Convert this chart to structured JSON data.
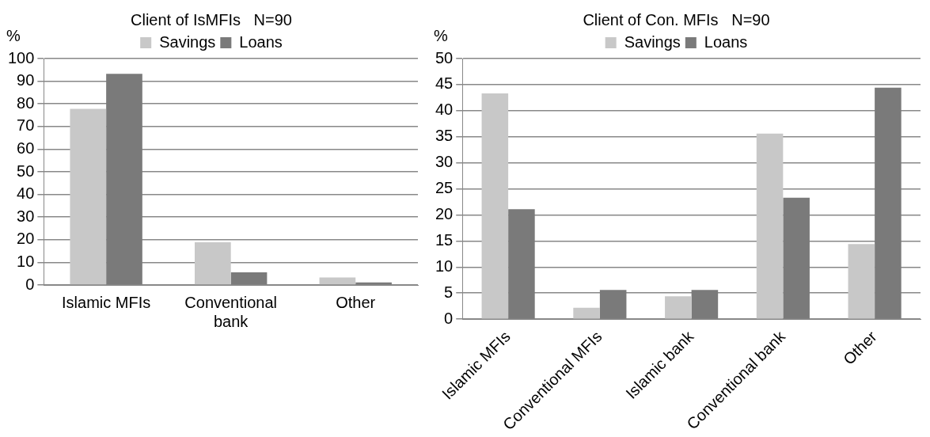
{
  "chart_data": [
    {
      "type": "bar",
      "title": "Client of IsMFIs   N=90",
      "ylabel": "%",
      "categories": [
        "Islamic MFIs",
        "Conventional bank",
        "Other"
      ],
      "series": [
        {
          "name": "Savings",
          "color": "#c8c8c8",
          "values": [
            77.8,
            18.9,
            3.3
          ]
        },
        {
          "name": "Loans",
          "color": "#7a7a7a",
          "values": [
            93.3,
            5.6,
            1.1
          ]
        }
      ],
      "ylim": [
        0,
        100
      ],
      "yticks": [
        0,
        10,
        20,
        30,
        40,
        50,
        60,
        70,
        80,
        90,
        100
      ],
      "grid": "y",
      "legend": "top"
    },
    {
      "type": "bar",
      "title": "Client of Con. MFIs   N=90",
      "ylabel": "%",
      "categories": [
        "Islamic MFIs",
        "Conventional MFIs",
        "Islamic bank",
        "Conventional bank",
        "Other"
      ],
      "series": [
        {
          "name": "Savings",
          "color": "#c8c8c8",
          "values": [
            43.3,
            2.2,
            4.4,
            35.6,
            14.4
          ]
        },
        {
          "name": "Loans",
          "color": "#7a7a7a",
          "values": [
            21.1,
            5.6,
            5.6,
            23.3,
            44.4
          ]
        }
      ],
      "ylim": [
        0,
        50
      ],
      "yticks": [
        0,
        5,
        10,
        15,
        20,
        25,
        30,
        35,
        40,
        45,
        50
      ],
      "grid": "y",
      "legend": "top"
    }
  ]
}
